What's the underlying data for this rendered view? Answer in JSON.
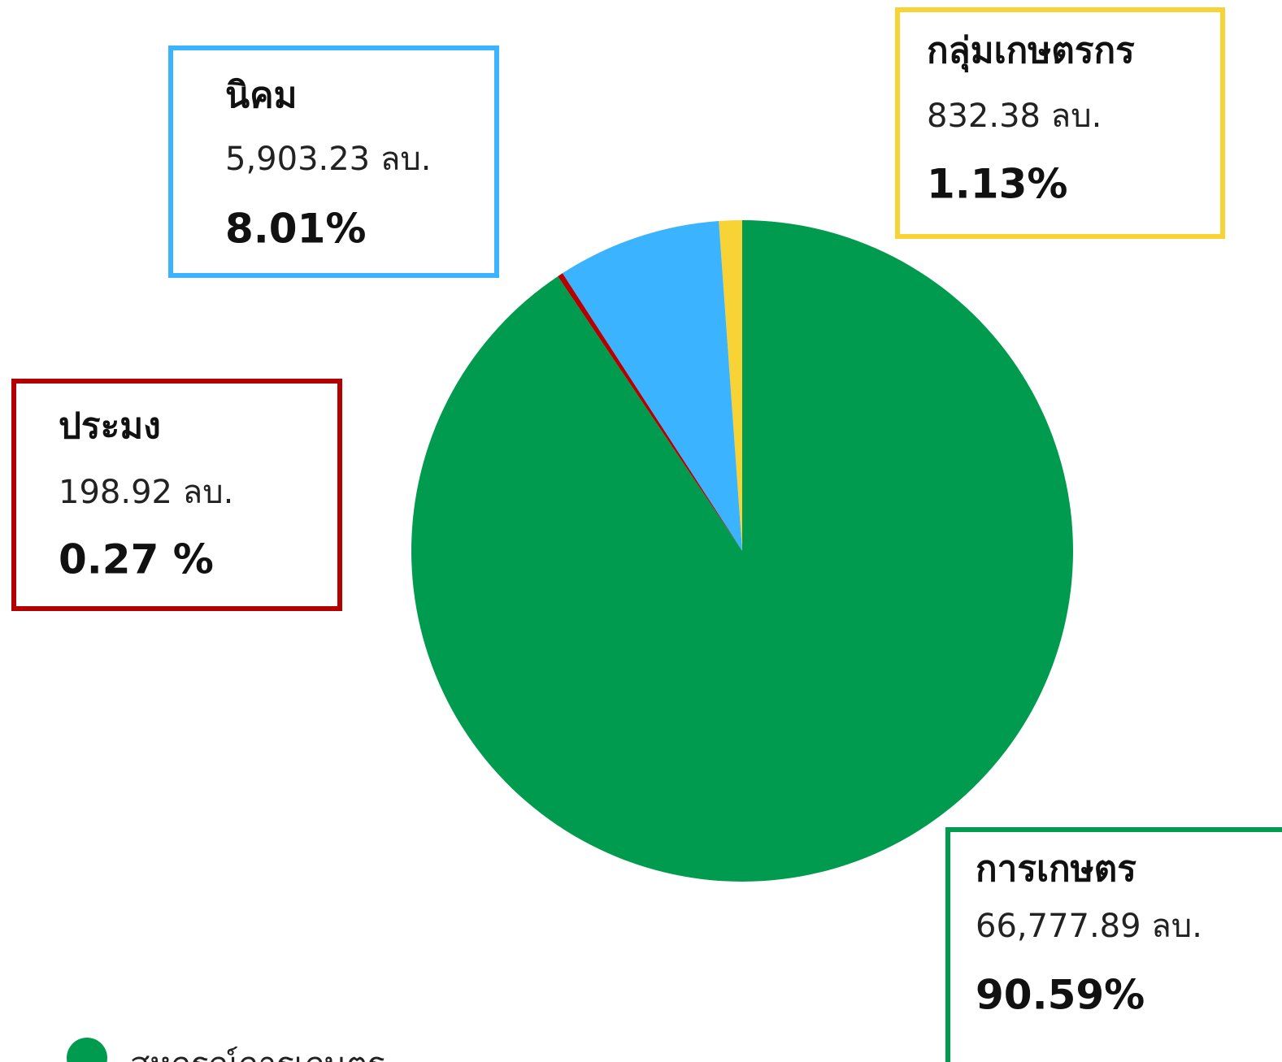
{
  "chart_data": {
    "type": "pie",
    "categories": [
      "กลุ่มเกษตรกร",
      "นิคม",
      "ประมง",
      "การเกษตร"
    ],
    "values": [
      1.13,
      8.01,
      0.27,
      90.59
    ],
    "value_labels": [
      "1.13%",
      "8.01%",
      "0.27 %",
      "90.59%"
    ],
    "amount_labels": [
      "832.38 ลบ.",
      "5,903.23 ลบ.",
      "198.92 ลบ.",
      "66,777.89 ลบ."
    ],
    "colors": [
      "#f7d335",
      "#3bb3ff",
      "#b30000",
      "#009b4e"
    ],
    "legend": [
      {
        "name": "สหกรณ์การเกษตร",
        "color": "#009b4e"
      }
    ]
  }
}
